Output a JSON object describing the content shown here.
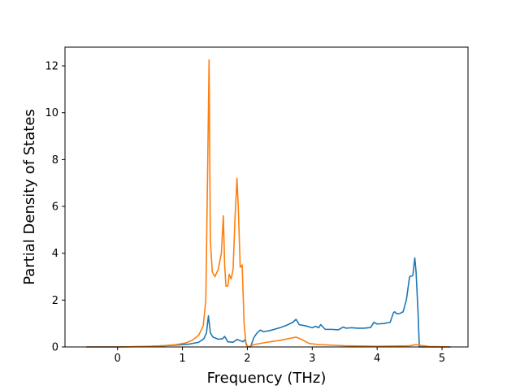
{
  "chart_data": {
    "type": "line",
    "title": "",
    "xlabel": "Frequency (THz)",
    "ylabel": "Partial Density of States",
    "xlim": [
      -0.81,
      5.4
    ],
    "ylim": [
      0,
      12.8
    ],
    "x_ticks": [
      0,
      1,
      2,
      3,
      4,
      5
    ],
    "y_ticks": [
      0,
      2,
      4,
      6,
      8,
      10,
      12
    ],
    "grid": false,
    "legend": "none",
    "series": [
      {
        "color": "#1f77b4",
        "x": [
          -0.48,
          0.0,
          0.5,
          0.9,
          1.1,
          1.25,
          1.33,
          1.37,
          1.4,
          1.43,
          1.47,
          1.55,
          1.62,
          1.65,
          1.7,
          1.78,
          1.84,
          1.88,
          1.93,
          1.96,
          2.0,
          2.05,
          2.1,
          2.15,
          2.2,
          2.25,
          2.35,
          2.5,
          2.6,
          2.7,
          2.75,
          2.8,
          2.9,
          3.0,
          3.05,
          3.1,
          3.13,
          3.2,
          3.3,
          3.4,
          3.48,
          3.52,
          3.6,
          3.7,
          3.8,
          3.9,
          3.95,
          4.0,
          4.1,
          4.2,
          4.25,
          4.27,
          4.3,
          4.35,
          4.4,
          4.45,
          4.5,
          4.55,
          4.58,
          4.6,
          4.63,
          4.65,
          4.8,
          5.13
        ],
        "values": [
          0.0,
          0.0,
          0.02,
          0.08,
          0.12,
          0.2,
          0.35,
          0.6,
          1.33,
          0.6,
          0.42,
          0.33,
          0.35,
          0.45,
          0.22,
          0.2,
          0.32,
          0.28,
          0.22,
          0.3,
          0.02,
          0.0,
          0.4,
          0.6,
          0.72,
          0.65,
          0.7,
          0.82,
          0.92,
          1.05,
          1.18,
          0.95,
          0.9,
          0.82,
          0.88,
          0.82,
          0.95,
          0.75,
          0.75,
          0.73,
          0.85,
          0.8,
          0.82,
          0.8,
          0.8,
          0.83,
          1.05,
          0.98,
          1.0,
          1.05,
          1.45,
          1.5,
          1.42,
          1.43,
          1.5,
          2.0,
          3.0,
          3.05,
          3.8,
          3.2,
          1.5,
          0.0,
          0.0,
          0.0
        ]
      },
      {
        "color": "#ff7f0e",
        "x": [
          -0.48,
          0.0,
          0.4,
          0.7,
          0.9,
          1.05,
          1.15,
          1.25,
          1.32,
          1.36,
          1.39,
          1.41,
          1.43,
          1.46,
          1.5,
          1.55,
          1.6,
          1.63,
          1.65,
          1.67,
          1.7,
          1.72,
          1.75,
          1.78,
          1.81,
          1.84,
          1.86,
          1.89,
          1.92,
          1.95,
          1.98,
          2.01,
          2.1,
          2.3,
          2.5,
          2.75,
          2.85,
          2.95,
          3.1,
          3.5,
          4.0,
          4.5,
          4.6,
          4.65,
          4.8,
          5.13
        ],
        "values": [
          0.0,
          0.0,
          0.02,
          0.05,
          0.1,
          0.17,
          0.28,
          0.5,
          0.9,
          2.0,
          8.0,
          12.25,
          4.5,
          3.2,
          3.0,
          3.3,
          4.0,
          5.6,
          3.5,
          2.6,
          2.6,
          3.1,
          2.9,
          3.3,
          5.5,
          7.2,
          6.0,
          3.4,
          3.5,
          1.0,
          0.1,
          0.0,
          0.1,
          0.2,
          0.28,
          0.42,
          0.3,
          0.15,
          0.1,
          0.05,
          0.03,
          0.05,
          0.1,
          0.07,
          0.02,
          0.0
        ]
      }
    ]
  }
}
